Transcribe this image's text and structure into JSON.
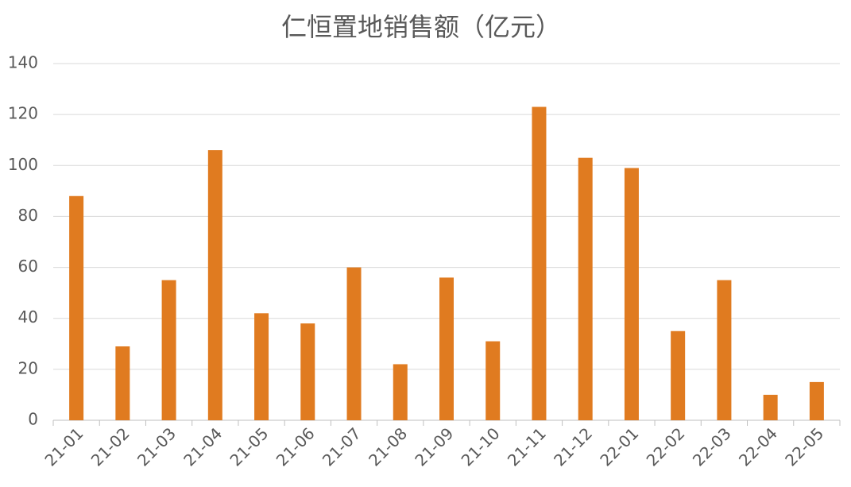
{
  "chart_data": {
    "type": "bar",
    "title": "仁恒置地销售额（亿元）",
    "categories": [
      "21-01",
      "21-02",
      "21-03",
      "21-04",
      "21-05",
      "21-06",
      "21-07",
      "21-08",
      "21-09",
      "21-10",
      "21-11",
      "21-12",
      "22-01",
      "22-02",
      "22-03",
      "22-04",
      "22-05"
    ],
    "values": [
      88,
      29,
      55,
      106,
      42,
      38,
      60,
      22,
      56,
      31,
      123,
      103,
      99,
      35,
      55,
      10,
      15
    ],
    "color": "#e07b20",
    "ylim": [
      0,
      140
    ],
    "yticks": [
      0,
      20,
      40,
      60,
      80,
      100,
      120,
      140
    ],
    "grid": true
  }
}
